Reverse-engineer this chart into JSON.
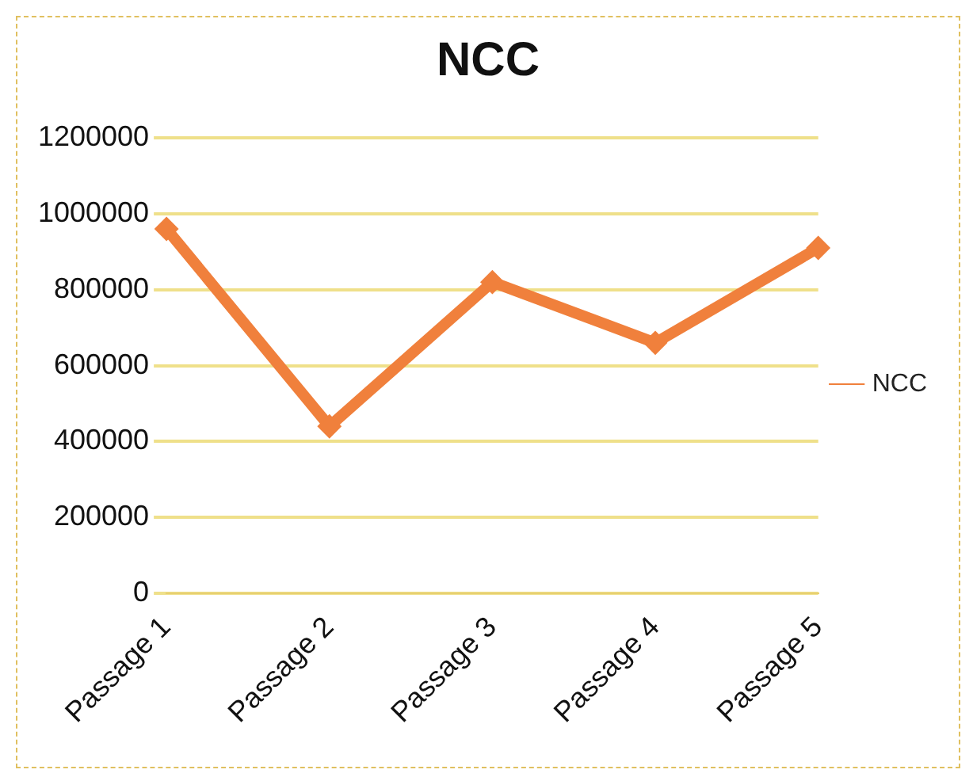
{
  "chart_data": {
    "type": "line",
    "title": "NCC",
    "categories": [
      "Passage 1",
      "Passage 2",
      "Passage 3",
      "Passage 4",
      "Passage 5"
    ],
    "series": [
      {
        "name": "NCC",
        "color": "#f0803c",
        "values": [
          960000,
          440000,
          820000,
          660000,
          910000
        ]
      }
    ],
    "ylim": [
      0,
      1200000
    ],
    "yticks": [
      0,
      200000,
      400000,
      600000,
      800000,
      1000000,
      1200000
    ],
    "grid": "y",
    "legend": "right",
    "marker": "diamond",
    "line_style": "solid"
  }
}
